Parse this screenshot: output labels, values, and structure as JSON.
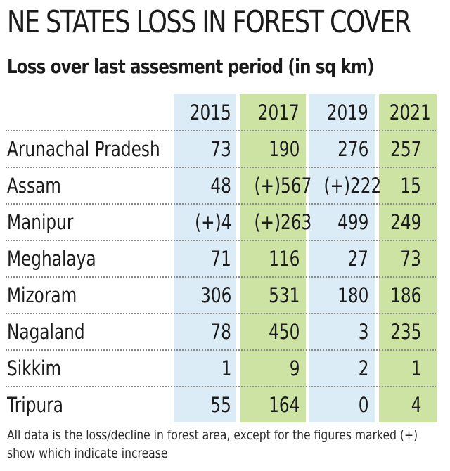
{
  "title": "NE STATES LOSS IN FOREST COVER",
  "subtitle": "Loss over last assesment period (in sq km)",
  "note": "All data is the loss/decline in forest area, except for the figures marked (+) show which indicate increase",
  "colors": {
    "col_2015": "#dcecf7",
    "col_2017": "#cde3a3",
    "col_2019": "#dcecf7",
    "col_2021": "#cde3a3"
  },
  "chart_data": {
    "type": "table",
    "title": "NE STATES LOSS IN FOREST COVER",
    "subtitle": "Loss over last assesment period (in sq km)",
    "columns": [
      "2015",
      "2017",
      "2019",
      "2021"
    ],
    "rows": [
      {
        "state": "Arunachal Pradesh",
        "values": [
          "73",
          "190",
          "276",
          "257"
        ]
      },
      {
        "state": "Assam",
        "values": [
          "48",
          "(+)567",
          "(+)222",
          "15"
        ]
      },
      {
        "state": "Manipur",
        "values": [
          "(+)4",
          "(+)263",
          "499",
          "249"
        ]
      },
      {
        "state": "Meghalaya",
        "values": [
          "71",
          "116",
          "27",
          "73"
        ]
      },
      {
        "state": "Mizoram",
        "values": [
          "306",
          "531",
          "180",
          "186"
        ]
      },
      {
        "state": "Nagaland",
        "values": [
          "78",
          "450",
          "3",
          "235"
        ]
      },
      {
        "state": "Sikkim",
        "values": [
          "1",
          "9",
          "2",
          "1"
        ]
      },
      {
        "state": "Tripura",
        "values": [
          "55",
          "164",
          "0",
          "4"
        ]
      }
    ],
    "note": "All data is the loss/decline in forest area, except for the figures marked (+) show which indicate increase"
  }
}
